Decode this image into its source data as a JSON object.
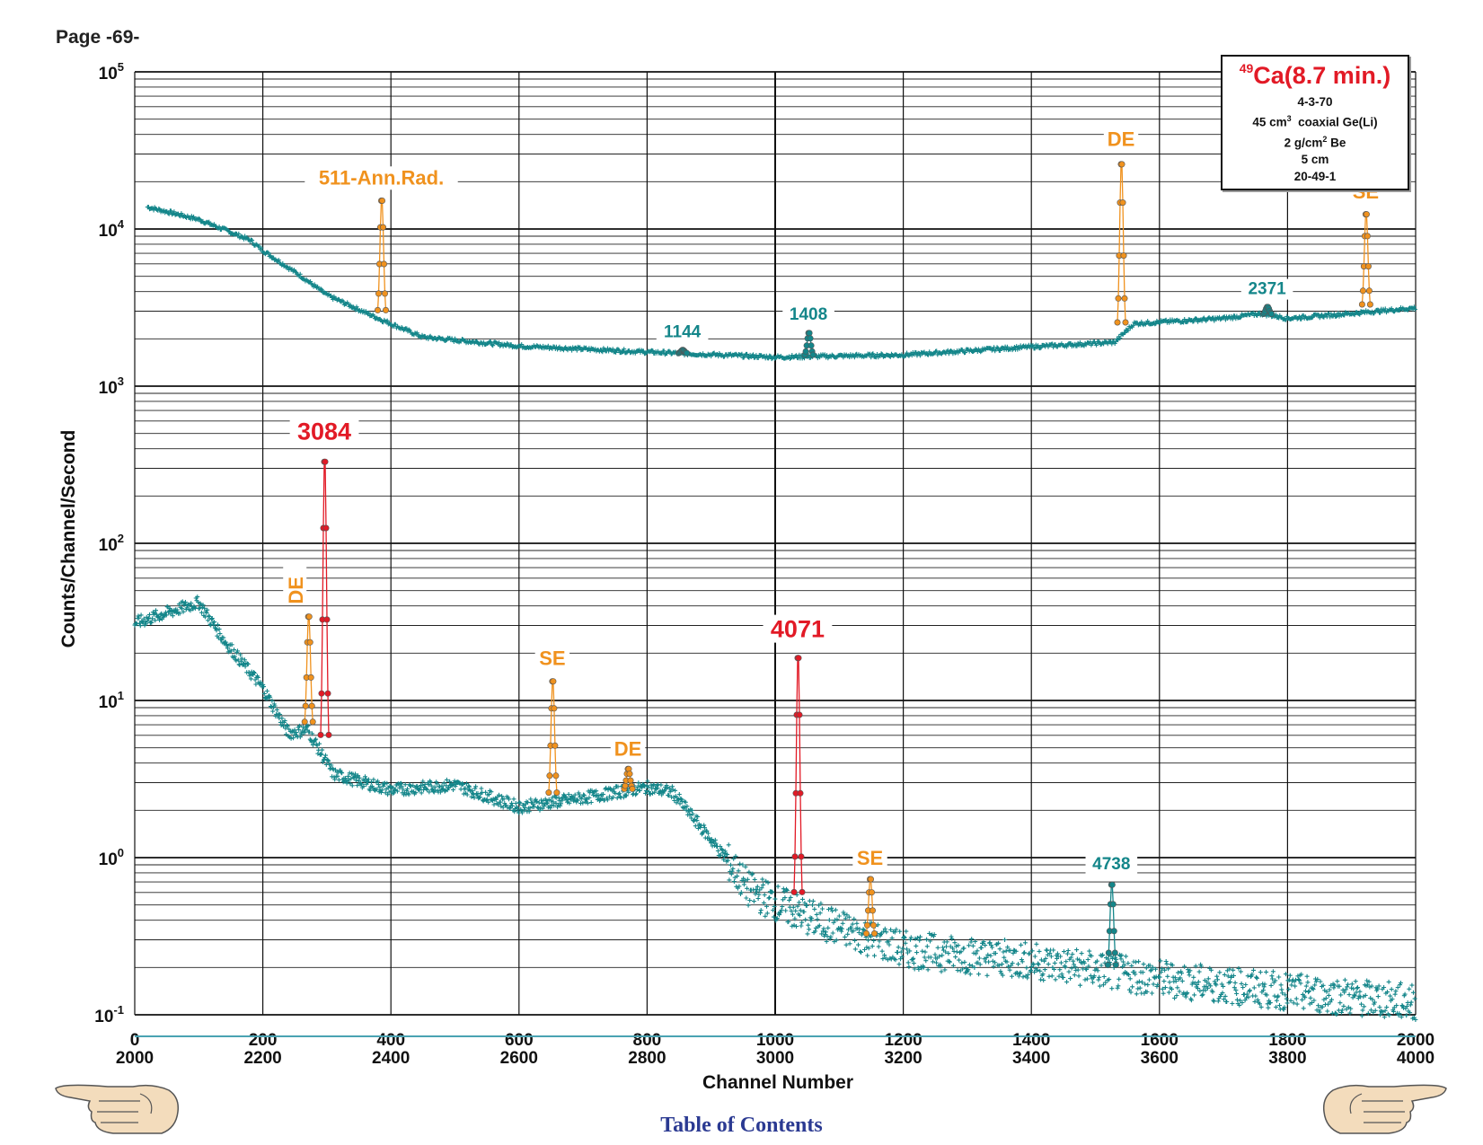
{
  "page": {
    "label": "Page -69-",
    "toc_link": "Table of Contents"
  },
  "legend": {
    "mass_number": "49",
    "nuclide": "Ca(8.7 min.)",
    "date": "4-3-70",
    "detector_volume": "45 cm",
    "detector_volume_exp": "3",
    "detector_type": "coaxial Ge(Li)",
    "absorber_value": "2 g/cm",
    "absorber_exp": "2",
    "absorber_material": "Be",
    "distance": "5 cm",
    "run_id": "20-49-1"
  },
  "colors": {
    "background": "#14868a",
    "full_energy": "#e21a26",
    "escape": "#f0921e",
    "background_line": "#1b1fc0",
    "axis_text": "#111111",
    "toc": "#2b3a92"
  },
  "chart_data": {
    "type": "scatter",
    "xlabel": "Channel Number",
    "ylabel": "Counts/Channel/Second",
    "y_scale": "log",
    "ylim": [
      0.1,
      100000
    ],
    "y_ticks": [
      {
        "base": "10",
        "exp": "5",
        "value": 100000
      },
      {
        "base": "10",
        "exp": "4",
        "value": 10000
      },
      {
        "base": "10",
        "exp": "3",
        "value": 1000
      },
      {
        "base": "10",
        "exp": "2",
        "value": 100
      },
      {
        "base": "10",
        "exp": "1",
        "value": 10
      },
      {
        "base": "10",
        "exp": "0",
        "value": 1
      },
      {
        "base": "10",
        "exp": "-1",
        "value": 0.1
      }
    ],
    "x_ticks_lower": [
      "0",
      "200",
      "400",
      "600",
      "800",
      "1000",
      "1200",
      "1400",
      "1600",
      "1800",
      "2000"
    ],
    "x_ticks_upper": [
      "2000",
      "2200",
      "2400",
      "2600",
      "2800",
      "3000",
      "3200",
      "3400",
      "3600",
      "3800",
      "4000"
    ],
    "grid": true,
    "series": [
      {
        "trace": "upper",
        "x_axis": "upper",
        "role": "background",
        "values": [
          [
            2020,
            13800
          ],
          [
            2100,
            11500
          ],
          [
            2180,
            8500
          ],
          [
            2200,
            7300
          ],
          [
            2260,
            5000
          ],
          [
            2300,
            3800
          ],
          [
            2380,
            2700
          ],
          [
            2450,
            2050
          ],
          [
            2600,
            1800
          ],
          [
            2800,
            1650
          ],
          [
            3000,
            1530
          ],
          [
            3200,
            1580
          ],
          [
            3400,
            1780
          ],
          [
            3530,
            1900
          ],
          [
            3560,
            2500
          ],
          [
            3700,
            2700
          ],
          [
            3760,
            2900
          ],
          [
            3800,
            2700
          ],
          [
            3900,
            2900
          ],
          [
            4000,
            3150
          ]
        ]
      },
      {
        "trace": "lower",
        "x_axis": "lower",
        "role": "background",
        "values": [
          [
            0,
            31
          ],
          [
            100,
            42
          ],
          [
            140,
            24
          ],
          [
            200,
            12
          ],
          [
            240,
            6.2
          ],
          [
            270,
            6.5
          ],
          [
            310,
            3.4
          ],
          [
            400,
            2.7
          ],
          [
            500,
            2.9
          ],
          [
            600,
            2.1
          ],
          [
            700,
            2.4
          ],
          [
            800,
            2.8
          ],
          [
            840,
            2.6
          ],
          [
            900,
            1.3
          ],
          [
            960,
            0.62
          ],
          [
            1050,
            0.42
          ],
          [
            1200,
            0.26
          ],
          [
            1400,
            0.22
          ],
          [
            1600,
            0.17
          ],
          [
            1800,
            0.14
          ],
          [
            2000,
            0.12
          ]
        ]
      }
    ],
    "peaks": [
      {
        "label": "511-Ann.Rad.",
        "kind": "escape",
        "trace": "upper",
        "x": 2385,
        "y": 16000
      },
      {
        "label": "1144",
        "kind": "background",
        "trace": "upper",
        "x": 2855,
        "y": 1700
      },
      {
        "label": "1408",
        "kind": "background",
        "trace": "upper",
        "x": 3052,
        "y": 2200
      },
      {
        "label": "DE",
        "kind": "escape",
        "trace": "upper",
        "x": 3540,
        "y": 28000
      },
      {
        "label": "2371",
        "kind": "background",
        "trace": "upper",
        "x": 3768,
        "y": 3200
      },
      {
        "label": "SE",
        "kind": "escape",
        "trace": "upper",
        "x": 3922,
        "y": 13000
      },
      {
        "label": "3084",
        "kind": "full_energy",
        "trace": "lower",
        "x": 296,
        "y": 380
      },
      {
        "label": "DE",
        "kind": "escape",
        "trace": "lower",
        "x": 271,
        "y": 36
      },
      {
        "label": "SE",
        "kind": "escape",
        "trace": "lower",
        "x": 652,
        "y": 14
      },
      {
        "label": "DE",
        "kind": "escape",
        "trace": "lower",
        "x": 770,
        "y": 3.7
      },
      {
        "label": "4071",
        "kind": "full_energy",
        "trace": "lower",
        "x": 1035,
        "y": 21
      },
      {
        "label": "SE",
        "kind": "escape",
        "trace": "lower",
        "x": 1148,
        "y": 0.75
      },
      {
        "label": "4738",
        "kind": "background",
        "trace": "lower",
        "x": 1525,
        "y": 0.7
      }
    ]
  }
}
